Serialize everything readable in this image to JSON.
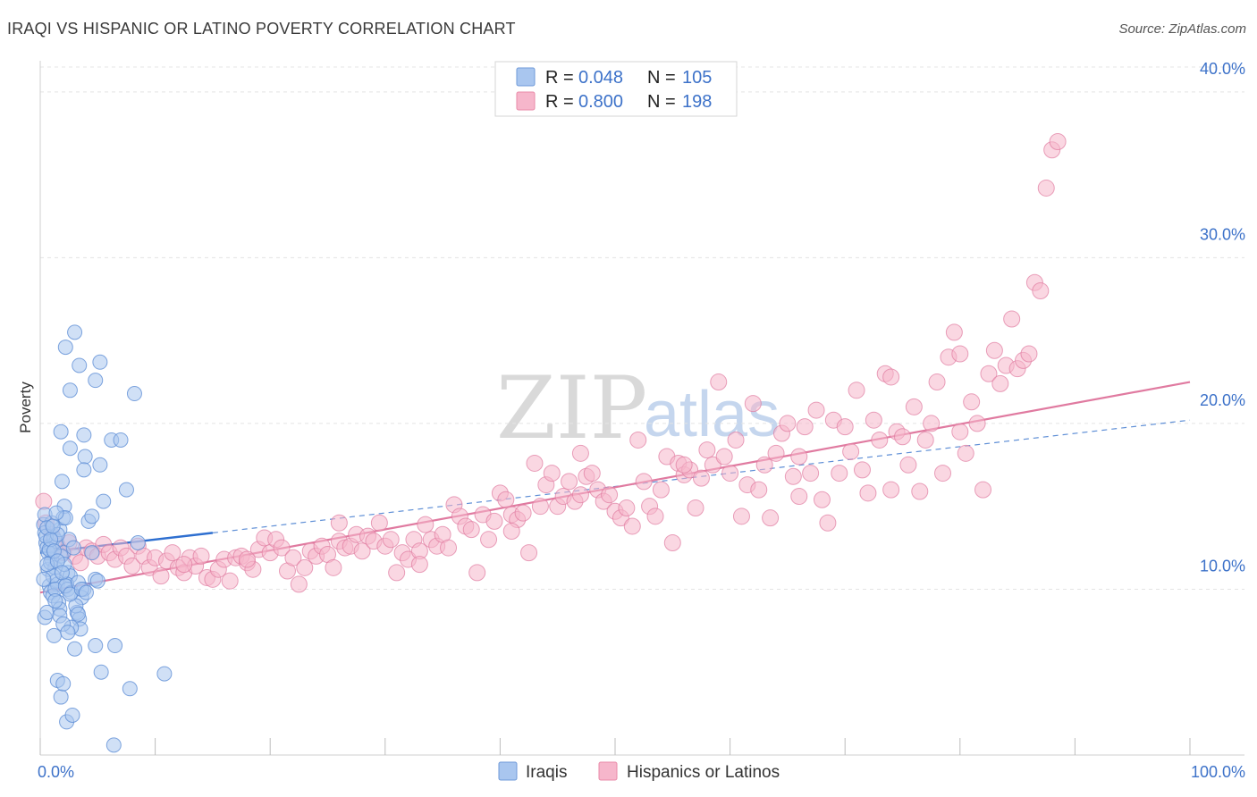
{
  "header": {
    "title": "IRAQI VS HISPANIC OR LATINO POVERTY CORRELATION CHART",
    "source": "Source: ZipAtlas.com"
  },
  "watermark": {
    "zip": "ZIP",
    "atlas": "atlas"
  },
  "legend_box": {
    "rows": [
      {
        "r_label": "R =",
        "r_value": "0.048",
        "n_label": "N =",
        "n_value": "105",
        "color": "#a9c6ef",
        "stroke": "#6f9ad8"
      },
      {
        "r_label": "R =",
        "r_value": "0.800",
        "n_label": "N =",
        "n_value": "198",
        "color": "#f6b6cb",
        "stroke": "#e98aa8"
      }
    ]
  },
  "chart_data": {
    "type": "scatter",
    "title": "IRAQI VS HISPANIC OR LATINO POVERTY CORRELATION CHART",
    "xlabel": "",
    "ylabel": "Poverty",
    "xlim": [
      0,
      100
    ],
    "ylim": [
      0,
      41.5
    ],
    "y_ticks": [
      10,
      20,
      30,
      40
    ],
    "y_tick_labels": [
      "10.0%",
      "20.0%",
      "30.0%",
      "40.0%"
    ],
    "x_tick_labels": [
      "0.0%",
      "100.0%"
    ],
    "grid": true,
    "legend_position": "top-center",
    "series": [
      {
        "name": "Iraqis",
        "color": "#a9c6ef",
        "stroke": "#5f8fd6",
        "trend": {
          "type": "solid-then-dashed",
          "x_solid": [
            0,
            15
          ],
          "x_dashed": [
            15,
            100
          ],
          "y_at_0": 12.2,
          "y_at_100": 20.2
        },
        "points": [
          [
            0.3,
            13.9
          ],
          [
            0.4,
            13.4
          ],
          [
            0.5,
            12.8
          ],
          [
            0.6,
            12.5
          ],
          [
            0.7,
            11.2
          ],
          [
            0.8,
            10.2
          ],
          [
            0.9,
            9.8
          ],
          [
            0.4,
            8.3
          ],
          [
            0.6,
            8.6
          ],
          [
            1.0,
            12.6
          ],
          [
            1.2,
            13.1
          ],
          [
            1.0,
            11.8
          ],
          [
            1.3,
            11.3
          ],
          [
            1.4,
            10.5
          ],
          [
            1.5,
            10.3
          ],
          [
            1.1,
            9.6
          ],
          [
            1.6,
            9.2
          ],
          [
            1.2,
            7.2
          ],
          [
            1.7,
            8.8
          ],
          [
            1.5,
            4.5
          ],
          [
            1.8,
            3.5
          ],
          [
            2.0,
            4.3
          ],
          [
            2.3,
            2.0
          ],
          [
            2.8,
            2.4
          ],
          [
            1.9,
            16.5
          ],
          [
            2.1,
            15.0
          ],
          [
            1.8,
            19.5
          ],
          [
            2.6,
            18.5
          ],
          [
            2.2,
            24.6
          ],
          [
            3.0,
            25.5
          ],
          [
            2.6,
            22.0
          ],
          [
            3.4,
            23.5
          ],
          [
            3.8,
            19.3
          ],
          [
            3.9,
            18.0
          ],
          [
            3.8,
            17.2
          ],
          [
            4.2,
            14.1
          ],
          [
            4.5,
            14.4
          ],
          [
            4.5,
            12.2
          ],
          [
            4.8,
            10.6
          ],
          [
            5.0,
            10.5
          ],
          [
            3.8,
            10.0
          ],
          [
            3.6,
            9.5
          ],
          [
            3.2,
            8.6
          ],
          [
            3.4,
            8.2
          ],
          [
            3.5,
            7.6
          ],
          [
            2.7,
            7.7
          ],
          [
            3.0,
            6.4
          ],
          [
            4.8,
            22.6
          ],
          [
            5.2,
            23.7
          ],
          [
            5.2,
            17.5
          ],
          [
            5.5,
            15.3
          ],
          [
            6.2,
            19.0
          ],
          [
            7.0,
            19.0
          ],
          [
            7.5,
            16.0
          ],
          [
            8.2,
            21.8
          ],
          [
            8.5,
            12.8
          ],
          [
            4.8,
            6.6
          ],
          [
            6.5,
            6.6
          ],
          [
            5.3,
            5.0
          ],
          [
            7.8,
            4.0
          ],
          [
            10.8,
            4.9
          ],
          [
            6.4,
            0.6
          ],
          [
            2.4,
            11.0
          ],
          [
            2.6,
            10.8
          ],
          [
            2.3,
            10.3
          ],
          [
            2.0,
            12.2
          ],
          [
            1.4,
            12.9
          ],
          [
            1.7,
            13.6
          ],
          [
            2.0,
            14.3
          ],
          [
            2.2,
            14.3
          ],
          [
            2.5,
            13.0
          ],
          [
            0.5,
            13.2
          ],
          [
            0.7,
            12.2
          ],
          [
            0.9,
            11.6
          ],
          [
            1.1,
            10.8
          ],
          [
            1.3,
            10.0
          ],
          [
            0.3,
            10.6
          ],
          [
            0.6,
            11.5
          ],
          [
            0.8,
            12.4
          ],
          [
            1.0,
            14.0
          ],
          [
            1.5,
            13.3
          ],
          [
            1.8,
            12.0
          ],
          [
            2.1,
            11.5
          ],
          [
            2.4,
            10.0
          ],
          [
            2.7,
            9.8
          ],
          [
            3.1,
            9.0
          ],
          [
            3.3,
            8.5
          ],
          [
            0.4,
            14.5
          ],
          [
            0.6,
            13.7
          ],
          [
            0.9,
            13.0
          ],
          [
            1.2,
            12.3
          ],
          [
            1.5,
            11.7
          ],
          [
            1.9,
            11.0
          ],
          [
            2.2,
            10.2
          ],
          [
            2.6,
            9.7
          ],
          [
            3.3,
            10.4
          ],
          [
            3.6,
            10.0
          ],
          [
            4.0,
            9.8
          ],
          [
            1.3,
            9.3
          ],
          [
            1.7,
            8.4
          ],
          [
            2.0,
            7.9
          ],
          [
            2.4,
            7.4
          ],
          [
            1.1,
            13.8
          ],
          [
            1.4,
            14.6
          ],
          [
            2.9,
            12.5
          ]
        ]
      },
      {
        "name": "Hispanics or Latinos",
        "color": "#f6b6cb",
        "stroke": "#e07aa0",
        "trend": {
          "type": "solid",
          "x": [
            0,
            100
          ],
          "y_at_0": 9.8,
          "y_at_100": 22.5
        },
        "points": [
          [
            0.3,
            15.3
          ],
          [
            0.5,
            14.0
          ],
          [
            1.0,
            13.3
          ],
          [
            1.5,
            12.6
          ],
          [
            2.0,
            12.2
          ],
          [
            2.5,
            12.8
          ],
          [
            3.0,
            12.0
          ],
          [
            3.5,
            11.6
          ],
          [
            4.0,
            12.5
          ],
          [
            4.5,
            12.3
          ],
          [
            5.0,
            12.0
          ],
          [
            5.5,
            12.7
          ],
          [
            6.0,
            12.2
          ],
          [
            6.5,
            11.8
          ],
          [
            7.0,
            12.5
          ],
          [
            7.5,
            12.0
          ],
          [
            8.0,
            11.4
          ],
          [
            8.5,
            12.6
          ],
          [
            9.0,
            12.0
          ],
          [
            9.5,
            11.3
          ],
          [
            10.0,
            11.9
          ],
          [
            10.5,
            10.8
          ],
          [
            11.0,
            11.7
          ],
          [
            11.5,
            12.2
          ],
          [
            12.0,
            11.3
          ],
          [
            12.5,
            11.0
          ],
          [
            13.0,
            11.9
          ],
          [
            13.5,
            11.4
          ],
          [
            14.0,
            12.0
          ],
          [
            14.5,
            10.7
          ],
          [
            15.0,
            10.6
          ],
          [
            15.5,
            11.2
          ],
          [
            16.0,
            11.8
          ],
          [
            16.5,
            10.5
          ],
          [
            17.0,
            11.9
          ],
          [
            17.5,
            12.0
          ],
          [
            18.0,
            11.6
          ],
          [
            18.5,
            11.2
          ],
          [
            19.0,
            12.4
          ],
          [
            19.5,
            13.1
          ],
          [
            20.0,
            12.2
          ],
          [
            20.5,
            13.0
          ],
          [
            21.0,
            12.5
          ],
          [
            21.5,
            11.1
          ],
          [
            22.0,
            11.9
          ],
          [
            22.5,
            10.3
          ],
          [
            23.0,
            11.3
          ],
          [
            23.5,
            12.3
          ],
          [
            24.0,
            12.0
          ],
          [
            24.5,
            12.6
          ],
          [
            25.0,
            12.1
          ],
          [
            25.5,
            11.3
          ],
          [
            26.0,
            12.9
          ],
          [
            26.5,
            12.5
          ],
          [
            27.0,
            12.6
          ],
          [
            27.5,
            13.3
          ],
          [
            28.0,
            12.3
          ],
          [
            28.5,
            13.2
          ],
          [
            29.0,
            12.9
          ],
          [
            29.5,
            14.0
          ],
          [
            30.0,
            12.6
          ],
          [
            30.5,
            13.0
          ],
          [
            31.0,
            11.0
          ],
          [
            31.5,
            12.2
          ],
          [
            32.0,
            11.8
          ],
          [
            32.5,
            13.0
          ],
          [
            33.0,
            12.3
          ],
          [
            33.5,
            13.9
          ],
          [
            34.0,
            13.0
          ],
          [
            34.5,
            12.6
          ],
          [
            35.0,
            13.3
          ],
          [
            35.5,
            12.5
          ],
          [
            36.0,
            15.1
          ],
          [
            36.5,
            14.4
          ],
          [
            37.0,
            13.8
          ],
          [
            37.5,
            13.6
          ],
          [
            38.0,
            11.0
          ],
          [
            38.5,
            14.5
          ],
          [
            39.0,
            13.0
          ],
          [
            39.5,
            14.1
          ],
          [
            40.0,
            15.8
          ],
          [
            40.5,
            15.4
          ],
          [
            41.0,
            14.5
          ],
          [
            41.5,
            14.2
          ],
          [
            42.0,
            14.6
          ],
          [
            42.5,
            12.2
          ],
          [
            43.0,
            17.6
          ],
          [
            43.5,
            15.0
          ],
          [
            44.0,
            16.3
          ],
          [
            44.5,
            17.0
          ],
          [
            45.0,
            15.0
          ],
          [
            45.5,
            15.6
          ],
          [
            46.0,
            16.5
          ],
          [
            46.5,
            15.3
          ],
          [
            47.0,
            18.2
          ],
          [
            47.5,
            16.8
          ],
          [
            48.0,
            17.0
          ],
          [
            48.5,
            16.0
          ],
          [
            49.0,
            15.3
          ],
          [
            49.5,
            15.7
          ],
          [
            50.0,
            14.7
          ],
          [
            50.5,
            14.3
          ],
          [
            51.0,
            14.9
          ],
          [
            51.5,
            13.8
          ],
          [
            52.0,
            19.0
          ],
          [
            52.5,
            16.5
          ],
          [
            53.0,
            15.0
          ],
          [
            53.5,
            14.4
          ],
          [
            54.0,
            16.0
          ],
          [
            54.5,
            18.0
          ],
          [
            55.0,
            12.8
          ],
          [
            55.5,
            17.6
          ],
          [
            56.0,
            16.9
          ],
          [
            56.5,
            17.2
          ],
          [
            57.0,
            14.9
          ],
          [
            57.5,
            16.7
          ],
          [
            58.0,
            18.4
          ],
          [
            58.5,
            17.5
          ],
          [
            59.0,
            22.5
          ],
          [
            59.5,
            18.0
          ],
          [
            60.0,
            17.0
          ],
          [
            60.5,
            19.0
          ],
          [
            61.0,
            14.4
          ],
          [
            61.5,
            16.3
          ],
          [
            62.0,
            21.2
          ],
          [
            62.5,
            16.0
          ],
          [
            63.0,
            17.5
          ],
          [
            63.5,
            14.3
          ],
          [
            64.0,
            18.2
          ],
          [
            64.5,
            19.4
          ],
          [
            65.0,
            20.0
          ],
          [
            65.5,
            16.8
          ],
          [
            66.0,
            18.0
          ],
          [
            66.5,
            19.8
          ],
          [
            67.0,
            17.0
          ],
          [
            67.5,
            20.8
          ],
          [
            68.0,
            15.4
          ],
          [
            68.5,
            14.0
          ],
          [
            69.0,
            20.2
          ],
          [
            69.5,
            17.0
          ],
          [
            70.0,
            19.8
          ],
          [
            70.5,
            18.3
          ],
          [
            71.0,
            22.0
          ],
          [
            71.5,
            17.2
          ],
          [
            72.0,
            15.8
          ],
          [
            72.5,
            20.2
          ],
          [
            73.0,
            19.0
          ],
          [
            73.5,
            23.0
          ],
          [
            74.0,
            22.8
          ],
          [
            74.5,
            19.5
          ],
          [
            75.0,
            19.2
          ],
          [
            75.5,
            17.5
          ],
          [
            76.0,
            21.0
          ],
          [
            76.5,
            15.9
          ],
          [
            77.0,
            19.0
          ],
          [
            77.5,
            20.0
          ],
          [
            78.0,
            22.5
          ],
          [
            78.5,
            17.0
          ],
          [
            79.0,
            24.0
          ],
          [
            79.5,
            25.5
          ],
          [
            80.0,
            24.2
          ],
          [
            80.5,
            18.2
          ],
          [
            81.0,
            21.3
          ],
          [
            81.5,
            20.0
          ],
          [
            82.0,
            16.0
          ],
          [
            82.5,
            23.0
          ],
          [
            83.0,
            24.4
          ],
          [
            83.5,
            22.4
          ],
          [
            84.0,
            23.5
          ],
          [
            84.5,
            26.3
          ],
          [
            85.0,
            23.3
          ],
          [
            85.5,
            23.8
          ],
          [
            86.0,
            24.2
          ],
          [
            86.5,
            28.5
          ],
          [
            87.0,
            28.0
          ],
          [
            87.5,
            34.2
          ],
          [
            88.0,
            36.5
          ],
          [
            88.5,
            37.0
          ],
          [
            12.5,
            11.5
          ],
          [
            18.0,
            11.8
          ],
          [
            26.0,
            14.0
          ],
          [
            33.0,
            11.5
          ],
          [
            41.0,
            13.5
          ],
          [
            47.0,
            15.7
          ],
          [
            56.0,
            17.5
          ],
          [
            66.0,
            15.6
          ],
          [
            74.0,
            16.0
          ],
          [
            80.0,
            19.5
          ]
        ]
      }
    ]
  },
  "bottom_legend": {
    "items": [
      {
        "label": "Iraqis",
        "color": "#a9c6ef",
        "stroke": "#6f9ad8"
      },
      {
        "label": "Hispanics or Latinos",
        "color": "#f6b6cb",
        "stroke": "#e98aa8"
      }
    ]
  }
}
